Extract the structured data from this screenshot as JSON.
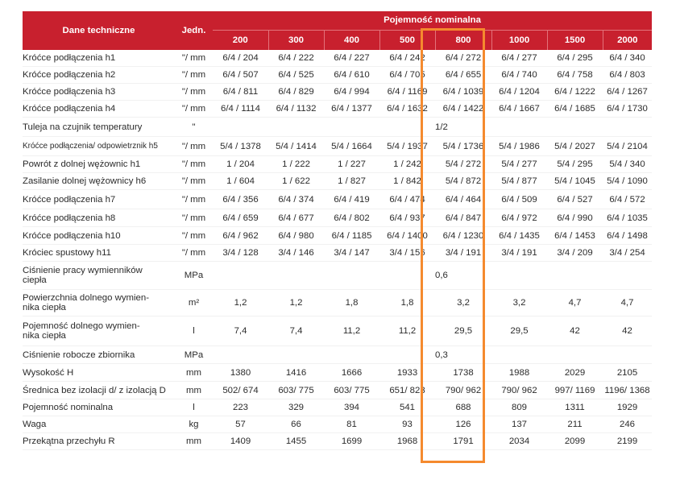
{
  "header": {
    "param_label": "Dane techniczne",
    "unit_label": "Jedn.",
    "group_label": "Pojemność nominalna",
    "capacities": [
      "200",
      "300",
      "400",
      "500",
      "800",
      "1000",
      "1500",
      "2000"
    ]
  },
  "rows": [
    {
      "param": "Króćce podłączenia h1",
      "unit": "\"/ mm",
      "values": [
        "6/4 / 204",
        "6/4 / 222",
        "6/4 / 227",
        "6/4 / 242",
        "6/4 / 272",
        "6/4 / 277",
        "6/4 / 295",
        "6/4 / 340"
      ]
    },
    {
      "param": "Króćce podłączenia h2",
      "unit": "\"/ mm",
      "values": [
        "6/4 / 507",
        "6/4 / 525",
        "6/4 / 610",
        "6/4 / 705",
        "6/4 / 655",
        "6/4 / 740",
        "6/4 / 758",
        "6/4 / 803"
      ]
    },
    {
      "param": "Króćce podłączenia h3",
      "unit": "\"/ mm",
      "values": [
        "6/4 / 811",
        "6/4 / 829",
        "6/4 / 994",
        "6/4 / 1169",
        "6/4 / 1039",
        "6/4 / 1204",
        "6/4 / 1222",
        "6/4 / 1267"
      ]
    },
    {
      "param": "Króćce podłączenia h4",
      "unit": "\"/ mm",
      "values": [
        "6/4 / 1114",
        "6/4 / 1132",
        "6/4 / 1377",
        "6/4 / 1632",
        "6/4 / 1422",
        "6/4 / 1667",
        "6/4 / 1685",
        "6/4 / 1730"
      ]
    },
    {
      "param": "Tuleja na czujnik temperatury",
      "unit": "\"",
      "merged": "1/2"
    },
    {
      "param": "Króćce podłączenia/ odpowietrznik h5",
      "unit": "\"/ mm",
      "values": [
        "5/4 / 1378",
        "5/4 / 1414",
        "5/4 / 1664",
        "5/4 / 1937",
        "5/4 / 1736",
        "5/4 / 1986",
        "5/4 / 2027",
        "5/4 / 2104"
      ]
    },
    {
      "param": "Powrót z dolnej wężownic h1",
      "unit": "\"/ mm",
      "values": [
        "1 / 204",
        "1 / 222",
        "1 / 227",
        "1 / 242",
        "5/4 / 272",
        "5/4 / 277",
        "5/4 / 295",
        "5/4 / 340"
      ]
    },
    {
      "param": "Zasilanie dolnej wężownicy h6",
      "unit": "\"/ mm",
      "values": [
        "1 / 604",
        "1 / 622",
        "1 / 827",
        "1 / 842",
        "5/4 / 872",
        "5/4 / 877",
        "5/4 / 1045",
        "5/4 / 1090"
      ]
    },
    {
      "param": "Króćce podłączenia h7",
      "unit": "\"/ mm",
      "values": [
        "6/4 / 356",
        "6/4 / 374",
        "6/4 / 419",
        "6/4 / 474",
        "6/4 / 464",
        "6/4 / 509",
        "6/4 / 527",
        "6/4 / 572"
      ]
    },
    {
      "param": "Króćce podłączenia h8",
      "unit": "\"/ mm",
      "values": [
        "6/4 / 659",
        "6/4 / 677",
        "6/4 / 802",
        "6/4 / 937",
        "6/4 / 847",
        "6/4 / 972",
        "6/4 / 990",
        "6/4 / 1035"
      ]
    },
    {
      "param": "Króćce podłączenia h10",
      "unit": "\"/ mm",
      "values": [
        "6/4 / 962",
        "6/4 / 980",
        "6/4 / 1185",
        "6/4 / 1400",
        "6/4 / 1230",
        "6/4 / 1435",
        "6/4 / 1453",
        "6/4 / 1498"
      ]
    },
    {
      "param": "Króciec spustowy h11",
      "unit": "\"/ mm",
      "values": [
        "3/4 / 128",
        "3/4 / 146",
        "3/4 / 147",
        "3/4 / 156",
        "3/4 / 191",
        "3/4 / 191",
        "3/4 / 209",
        "3/4 / 254"
      ]
    },
    {
      "param": "Ciśnienie pracy wymienników ciepła",
      "unit": "MPa",
      "merged": "0,6"
    },
    {
      "param": "Powierzchnia  dolnego wymiennika ciepła",
      "unit": "m²",
      "values": [
        "1,2",
        "1,2",
        "1,8",
        "1,8",
        "3,2",
        "3,2",
        "4,7",
        "4,7"
      ]
    },
    {
      "param": "Pojemność dolnego wymiennika ciepła",
      "unit": "l",
      "values": [
        "7,4",
        "7,4",
        "11,2",
        "11,2",
        "29,5",
        "29,5",
        "42",
        "42"
      ]
    },
    {
      "param": "Ciśnienie robocze zbiornika",
      "unit": "MPa",
      "merged": "0,3"
    },
    {
      "param": "Wysokość H",
      "unit": "mm",
      "values": [
        "1380",
        "1416",
        "1666",
        "1933",
        "1738",
        "1988",
        "2029",
        "2105"
      ]
    },
    {
      "param": "Średnica bez izolacji d/ z izolacją D",
      "unit": "mm",
      "values": [
        "502/ 674",
        "603/ 775",
        "603/ 775",
        "651/ 823",
        "790/ 962",
        "790/ 962",
        "997/ 1169",
        "1196/ 1368"
      ]
    },
    {
      "param": "Pojemność nominalna",
      "unit": "l",
      "values": [
        "223",
        "329",
        "394",
        "541",
        "688",
        "809",
        "1311",
        "1929"
      ]
    },
    {
      "param": "Waga",
      "unit": "kg",
      "values": [
        "57",
        "66",
        "81",
        "93",
        "126",
        "137",
        "211",
        "246"
      ]
    },
    {
      "param": "Przekątna przechyłu R",
      "unit": "mm",
      "values": [
        "1409",
        "1455",
        "1699",
        "1968",
        "1791",
        "2034",
        "2099",
        "2199"
      ]
    }
  ],
  "param_lines": {
    "12": [
      "Ciśnienie pracy wymienników",
      "ciepła"
    ],
    "13": [
      "Powierzchnia  dolnego wymien-",
      "nika ciepła"
    ],
    "14": [
      "Pojemność dolnego wymien-",
      "nika ciepła"
    ]
  },
  "colors": {
    "header_bg": "#c8202e",
    "highlight": "#f58a2e"
  }
}
